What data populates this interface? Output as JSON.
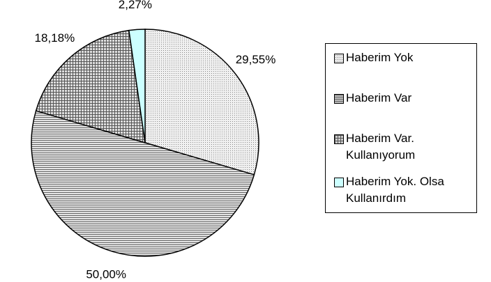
{
  "chart_data": {
    "type": "pie",
    "categories": [
      "Haberim Yok",
      "Haberim Var",
      "Haberim Var. Kullanıyorum",
      "Haberim Yok. Olsa Kullanırdım"
    ],
    "values": [
      29.55,
      50.0,
      18.18,
      2.27
    ],
    "value_labels": [
      "29,55%",
      "50,00%",
      "18,18%",
      "2,27%"
    ],
    "colors": [
      "#e8e8e8",
      "#bbbbbb",
      "#cccccc",
      "#ccffff"
    ],
    "patterns": [
      "dots",
      "hlines",
      "grid",
      "none"
    ],
    "legend": "right"
  }
}
